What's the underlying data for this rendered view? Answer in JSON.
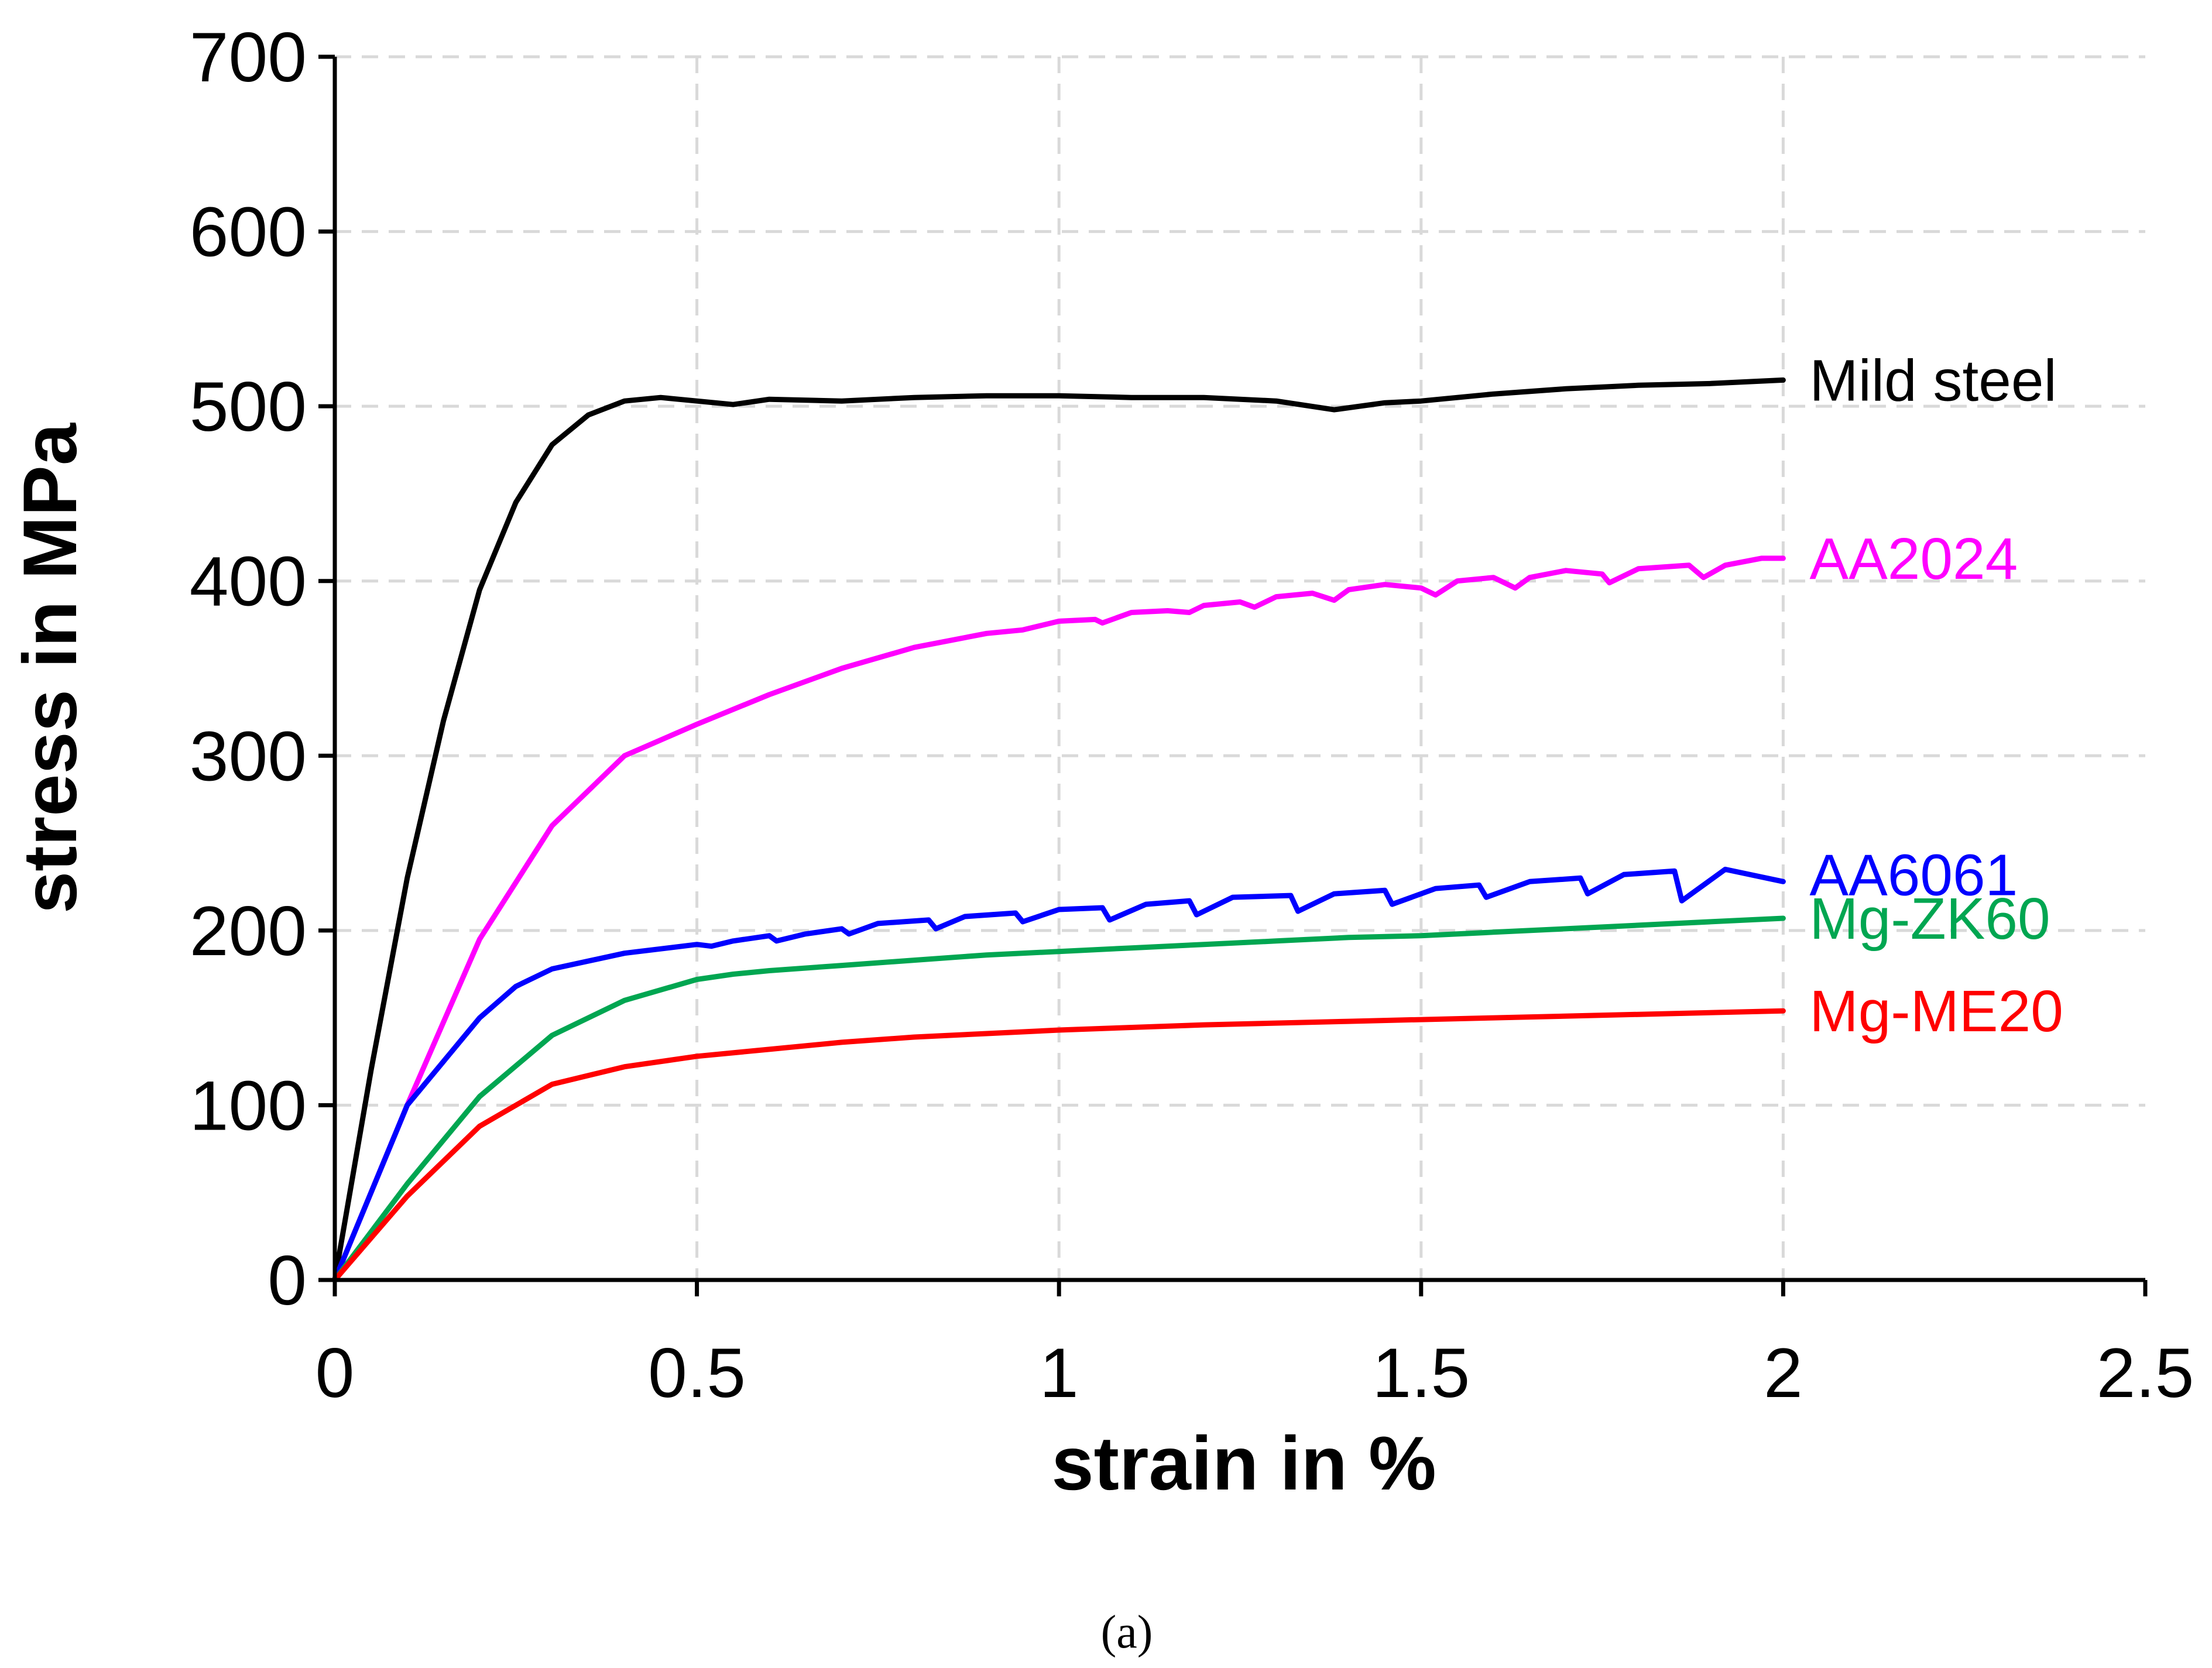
{
  "chart_data": {
    "type": "line",
    "title": "",
    "xlabel": "strain in %",
    "ylabel": "stress in MPa",
    "xlim": [
      0,
      2.5
    ],
    "ylim": [
      0,
      700
    ],
    "xticks": [
      0,
      0.5,
      1,
      1.5,
      2,
      2.5
    ],
    "xtick_labels": [
      "0",
      "0.5",
      "1",
      "1.5",
      "2",
      "2.5"
    ],
    "yticks": [
      0,
      100,
      200,
      300,
      400,
      500,
      600,
      700
    ],
    "ytick_labels": [
      "0",
      "100",
      "200",
      "300",
      "400",
      "500",
      "600",
      "700"
    ],
    "grid": true,
    "series": [
      {
        "name": "Mild steel",
        "color": "#000000",
        "x": [
          0,
          0.05,
          0.1,
          0.15,
          0.2,
          0.25,
          0.3,
          0.35,
          0.4,
          0.45,
          0.5,
          0.55,
          0.6,
          0.7,
          0.8,
          0.9,
          1.0,
          1.1,
          1.2,
          1.3,
          1.38,
          1.45,
          1.5,
          1.6,
          1.7,
          1.8,
          1.9,
          2.0
        ],
        "y": [
          0,
          120,
          230,
          320,
          395,
          445,
          478,
          495,
          503,
          505,
          503,
          501,
          504,
          503,
          505,
          506,
          506,
          505,
          505,
          503,
          498,
          502,
          503,
          507,
          510,
          512,
          513,
          515
        ]
      },
      {
        "name": "AA2024",
        "color": "#ff00ff",
        "x": [
          0,
          0.1,
          0.2,
          0.3,
          0.4,
          0.5,
          0.6,
          0.7,
          0.8,
          0.9,
          0.95,
          1.0,
          1.05,
          1.06,
          1.1,
          1.15,
          1.18,
          1.2,
          1.25,
          1.27,
          1.3,
          1.35,
          1.38,
          1.4,
          1.45,
          1.5,
          1.52,
          1.55,
          1.6,
          1.63,
          1.65,
          1.7,
          1.75,
          1.76,
          1.8,
          1.87,
          1.89,
          1.92,
          1.97,
          2.0
        ],
        "y": [
          0,
          100,
          195,
          260,
          300,
          318,
          335,
          350,
          362,
          370,
          372,
          377,
          378,
          376,
          382,
          383,
          382,
          386,
          388,
          385,
          391,
          393,
          389,
          395,
          398,
          396,
          392,
          400,
          402,
          396,
          402,
          406,
          404,
          399,
          407,
          409,
          402,
          409,
          413,
          413
        ]
      },
      {
        "name": "AA6061",
        "color": "#0000ff",
        "x": [
          0,
          0.1,
          0.2,
          0.25,
          0.3,
          0.4,
          0.5,
          0.52,
          0.55,
          0.6,
          0.61,
          0.65,
          0.7,
          0.71,
          0.75,
          0.82,
          0.83,
          0.87,
          0.94,
          0.95,
          1.0,
          1.06,
          1.07,
          1.12,
          1.18,
          1.19,
          1.24,
          1.32,
          1.33,
          1.38,
          1.45,
          1.46,
          1.52,
          1.58,
          1.59,
          1.65,
          1.72,
          1.73,
          1.78,
          1.85,
          1.86,
          1.92,
          2.0
        ],
        "y": [
          0,
          100,
          150,
          168,
          178,
          187,
          192,
          191,
          194,
          197,
          194,
          198,
          201,
          198,
          204,
          206,
          201,
          208,
          210,
          205,
          212,
          213,
          206,
          215,
          217,
          209,
          219,
          220,
          211,
          221,
          223,
          215,
          224,
          226,
          219,
          228,
          230,
          221,
          232,
          234,
          217,
          235,
          228
        ]
      },
      {
        "name": "Mg-ZK60",
        "color": "#00a651",
        "x": [
          0,
          0.1,
          0.2,
          0.3,
          0.4,
          0.5,
          0.55,
          0.6,
          0.7,
          0.8,
          0.9,
          1.0,
          1.1,
          1.2,
          1.3,
          1.4,
          1.5,
          1.6,
          1.7,
          1.8,
          1.9,
          2.0
        ],
        "y": [
          0,
          55,
          105,
          140,
          160,
          172,
          175,
          177,
          180,
          183,
          186,
          188,
          190,
          192,
          194,
          196,
          197,
          199,
          201,
          203,
          205,
          207
        ]
      },
      {
        "name": "Mg-ME20",
        "color": "#ff0000",
        "x": [
          0,
          0.1,
          0.2,
          0.3,
          0.4,
          0.5,
          0.6,
          0.7,
          0.8,
          0.9,
          1.0,
          1.2,
          1.4,
          1.6,
          1.8,
          2.0
        ],
        "y": [
          0,
          48,
          88,
          112,
          122,
          128,
          132,
          136,
          139,
          141,
          143,
          146,
          148,
          150,
          152,
          154
        ]
      }
    ]
  },
  "caption": "(a)"
}
